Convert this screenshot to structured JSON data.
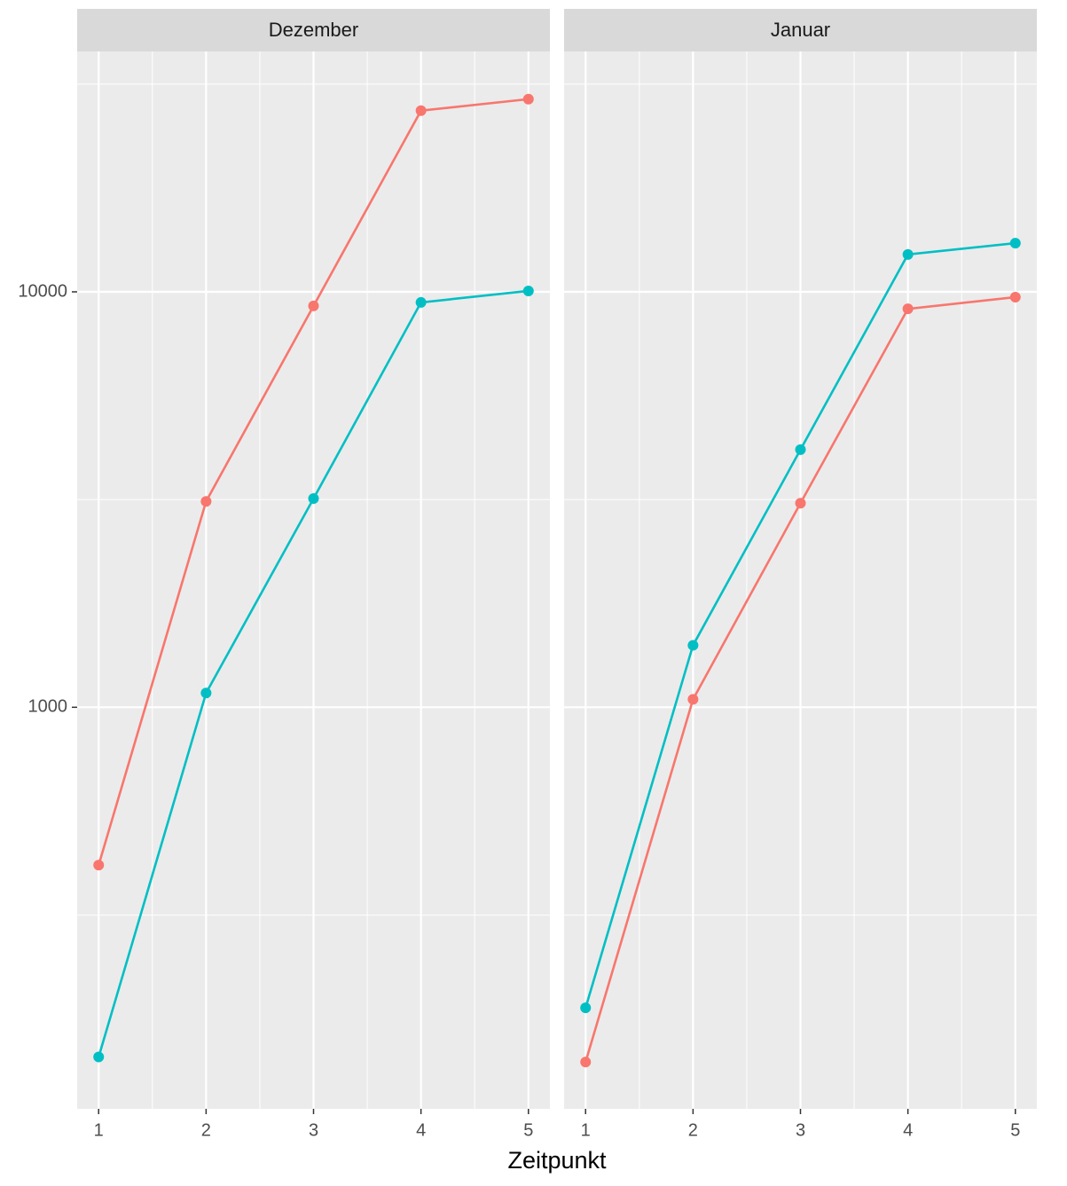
{
  "chart_data": {
    "type": "line",
    "x_label": "Zeitpunkt",
    "log_y": true,
    "grid": true,
    "x": [
      1,
      2,
      3,
      4,
      5
    ],
    "xlim": [
      0.8,
      5.2
    ],
    "xticks": [
      1,
      2,
      3,
      4,
      5
    ],
    "ylim": [
      108,
      37900
    ],
    "yticks": [
      1000,
      10000
    ],
    "minor_yticks": [
      316,
      3162,
      31623
    ],
    "facets": [
      {
        "title": "Dezember",
        "series": [
          {
            "color": "#f8766d",
            "values": [
              417,
              3130,
              9250,
              27300,
              29100
            ]
          },
          {
            "color": "#00bfc4",
            "values": [
              144,
              1082,
              3180,
              9430,
              10050
            ]
          }
        ]
      },
      {
        "title": "Januar",
        "series": [
          {
            "color": "#f8766d",
            "values": [
              140,
              1045,
              3100,
              9100,
              9710
            ]
          },
          {
            "color": "#00bfc4",
            "values": [
              189,
              1410,
              4170,
              12300,
              13100
            ]
          }
        ]
      }
    ]
  }
}
